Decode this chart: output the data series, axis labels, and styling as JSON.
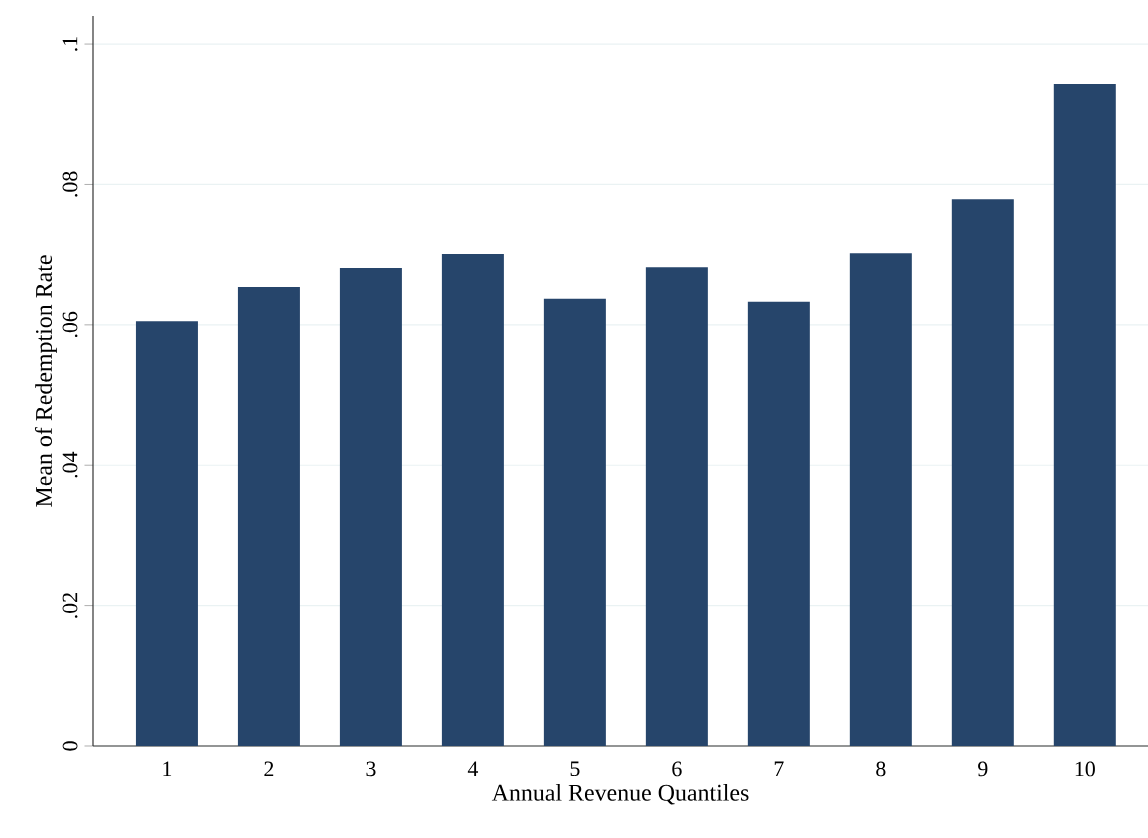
{
  "chart_data": {
    "type": "bar",
    "xlabel": "Annual Revenue Quantiles",
    "ylabel": "Mean of Redemption Rate",
    "categories": [
      "1",
      "2",
      "3",
      "4",
      "5",
      "6",
      "7",
      "8",
      "9",
      "10"
    ],
    "values": [
      0.0605,
      0.0654,
      0.0681,
      0.0701,
      0.0637,
      0.0682,
      0.0633,
      0.0702,
      0.0779,
      0.0943
    ],
    "color": "#26456b",
    "ylim": [
      0,
      0.104
    ],
    "yticks": [
      0,
      {
        "value": 0.02,
        "label": ".02"
      },
      {
        "value": 0.04,
        "label": ".04"
      },
      {
        "value": 0.06,
        "label": ".06"
      },
      {
        "value": 0.08,
        "label": ".08"
      },
      {
        "value": 0.1,
        "label": ".1"
      }
    ],
    "grid": "y"
  }
}
